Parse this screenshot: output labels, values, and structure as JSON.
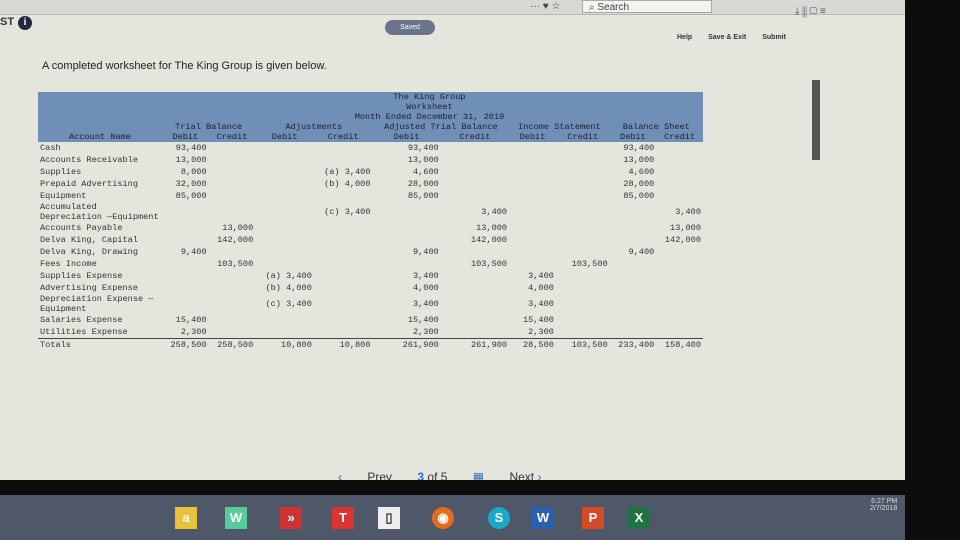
{
  "browser": {
    "search_placeholder": "Search"
  },
  "header": {
    "title_fragment": "ST",
    "saved_badge": "Saved",
    "help": "Help",
    "save_exit": "Save & Exit",
    "submit": "Submit"
  },
  "intro": "A completed worksheet for The King Group is given below.",
  "worksheet": {
    "title": "The King Group",
    "subtitle": "Worksheet",
    "period": "Month Ended December 31, 2019",
    "groups": [
      "Trial Balance",
      "Adjustments",
      "Adjusted Trial Balance",
      "Income Statement",
      "Balance Sheet"
    ],
    "account_header": "Account Name",
    "debit": "Debit",
    "credit": "Credit",
    "rows": [
      {
        "name": "Cash",
        "v": [
          "93,400",
          "",
          "",
          "",
          "93,400",
          "",
          "",
          "",
          "93,400",
          ""
        ]
      },
      {
        "name": "Accounts Receivable",
        "v": [
          "13,000",
          "",
          "",
          "",
          "13,000",
          "",
          "",
          "",
          "13,000",
          ""
        ]
      },
      {
        "name": "Supplies",
        "v": [
          "8,000",
          "",
          "",
          "(a) 3,400",
          "4,600",
          "",
          "",
          "",
          "4,600",
          ""
        ]
      },
      {
        "name": "Prepaid Advertising",
        "v": [
          "32,000",
          "",
          "",
          "(b) 4,000",
          "28,000",
          "",
          "",
          "",
          "28,000",
          ""
        ]
      },
      {
        "name": "Equipment",
        "v": [
          "85,000",
          "",
          "",
          "",
          "85,000",
          "",
          "",
          "",
          "85,000",
          ""
        ]
      },
      {
        "name": "Accumulated Depreciation —Equipment",
        "v": [
          "",
          "",
          "",
          "(c) 3,400",
          "",
          "3,400",
          "",
          "",
          "",
          "3,400"
        ]
      },
      {
        "name": "Accounts Payable",
        "v": [
          "",
          "13,000",
          "",
          "",
          "",
          "13,000",
          "",
          "",
          "",
          "13,000"
        ]
      },
      {
        "name": "Delva King, Capital",
        "v": [
          "",
          "142,000",
          "",
          "",
          "",
          "142,000",
          "",
          "",
          "",
          "142,000"
        ]
      },
      {
        "name": "Delva King, Drawing",
        "v": [
          "9,400",
          "",
          "",
          "",
          "9,400",
          "",
          "",
          "",
          "9,400",
          ""
        ]
      },
      {
        "name": "Fees Income",
        "v": [
          "",
          "103,500",
          "",
          "",
          "",
          "103,500",
          "",
          "103,500",
          "",
          ""
        ]
      },
      {
        "name": "Supplies Expense",
        "v": [
          "",
          "",
          "(a) 3,400",
          "",
          "3,400",
          "",
          "3,400",
          "",
          "",
          ""
        ]
      },
      {
        "name": "Advertising Expense",
        "v": [
          "",
          "",
          "(b) 4,000",
          "",
          "4,000",
          "",
          "4,000",
          "",
          "",
          ""
        ]
      },
      {
        "name": "Depreciation Expense —Equipment",
        "v": [
          "",
          "",
          "(c) 3,400",
          "",
          "3,400",
          "",
          "3,400",
          "",
          "",
          ""
        ]
      },
      {
        "name": "Salaries Expense",
        "v": [
          "15,400",
          "",
          "",
          "",
          "15,400",
          "",
          "15,400",
          "",
          "",
          ""
        ]
      },
      {
        "name": "Utilities Expense",
        "v": [
          "2,300",
          "",
          "",
          "",
          "2,300",
          "",
          "2,300",
          "",
          "",
          ""
        ]
      }
    ],
    "totals": {
      "name": "Totals",
      "v": [
        "258,500",
        "258,500",
        "10,800",
        "10,800",
        "261,900",
        "261,900",
        "28,500",
        "103,500",
        "233,400",
        "158,400"
      ]
    }
  },
  "pager": {
    "prev": "Prev",
    "current": "3",
    "of": "of 5",
    "next": "Next"
  },
  "clock": {
    "time": "6:27 PM",
    "date": "2/7/2018"
  }
}
